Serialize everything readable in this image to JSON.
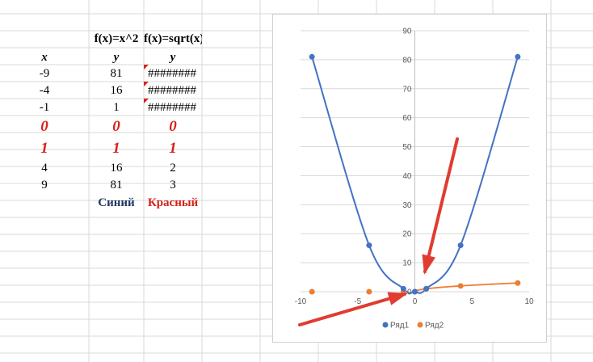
{
  "sheet": {
    "header_row": [
      "",
      "f(x)=x^2",
      "f(x)=sqrt(x)"
    ],
    "var_row": [
      "x",
      "y",
      "y"
    ],
    "rows": [
      [
        "-9",
        "81",
        "########"
      ],
      [
        "-4",
        "16",
        "########"
      ],
      [
        "-1",
        "1",
        "########"
      ],
      [
        "0",
        "0",
        "0"
      ],
      [
        "1",
        "1",
        "1"
      ],
      [
        "4",
        "16",
        "2"
      ],
      [
        "9",
        "81",
        "3"
      ]
    ],
    "labels": {
      "blue": "Синий",
      "red": "Красный"
    }
  },
  "colors": {
    "series1": "#4472c4",
    "series2": "#ed7d31",
    "arrow": "#e03c31",
    "highlight": "#d7211a",
    "label_blue": "#1f3864"
  },
  "chart_data": {
    "type": "scatter",
    "title": "",
    "xlabel": "",
    "ylabel": "",
    "xlim": [
      -10,
      10
    ],
    "ylim": [
      0,
      90
    ],
    "x_ticks": [
      "-10",
      "-5",
      "0",
      "5",
      "10"
    ],
    "y_ticks": [
      "0",
      "10",
      "20",
      "30",
      "40",
      "50",
      "60",
      "70",
      "80",
      "90"
    ],
    "grid": true,
    "legend": "bottom",
    "series": [
      {
        "name": "Ряд1",
        "x": [
          -9,
          -4,
          -1,
          0,
          1,
          4,
          9
        ],
        "y": [
          81,
          16,
          1,
          0,
          1,
          16,
          81
        ],
        "smooth": true,
        "color": "#4472c4"
      },
      {
        "name": "Ряд2",
        "x": [
          -9,
          -4,
          -1,
          0,
          1,
          4,
          9
        ],
        "y": [
          0,
          0,
          0,
          0,
          1,
          2,
          3
        ],
        "trendline_from_x": 0,
        "color": "#ed7d31"
      }
    ]
  }
}
